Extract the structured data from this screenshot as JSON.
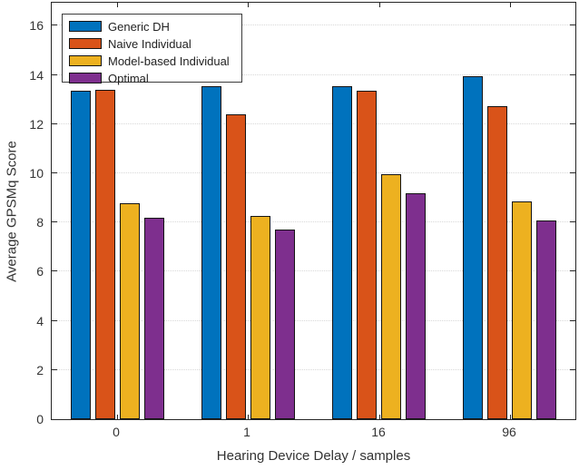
{
  "chart_data": {
    "type": "bar",
    "title": "",
    "xlabel": "Hearing Device Delay / samples",
    "ylabel": "Average GPSMq Score",
    "categories": [
      "0",
      "1",
      "16",
      "96"
    ],
    "series": [
      {
        "name": "Generic DH",
        "color": "#0072BD",
        "values": [
          13.35,
          13.55,
          13.55,
          13.95
        ]
      },
      {
        "name": "Naive Individual",
        "color": "#D95319",
        "values": [
          13.4,
          12.4,
          13.35,
          12.75
        ]
      },
      {
        "name": "Model-based Individual",
        "color": "#EDB120",
        "values": [
          8.8,
          8.25,
          9.95,
          8.85
        ]
      },
      {
        "name": "Optimal",
        "color": "#7E2F8E",
        "values": [
          8.2,
          7.7,
          9.2,
          8.1
        ]
      }
    ],
    "ylim": [
      0,
      16.94
    ],
    "yticks": [
      0,
      2,
      4,
      6,
      8,
      10,
      12,
      14,
      16
    ],
    "grid": true,
    "legend_position": "top-left",
    "colors": {
      "bar_edge": "#141414",
      "axis": "#262626",
      "grid": "#d8d8d8",
      "tick_label": "#333333",
      "background": "#ffffff"
    }
  }
}
